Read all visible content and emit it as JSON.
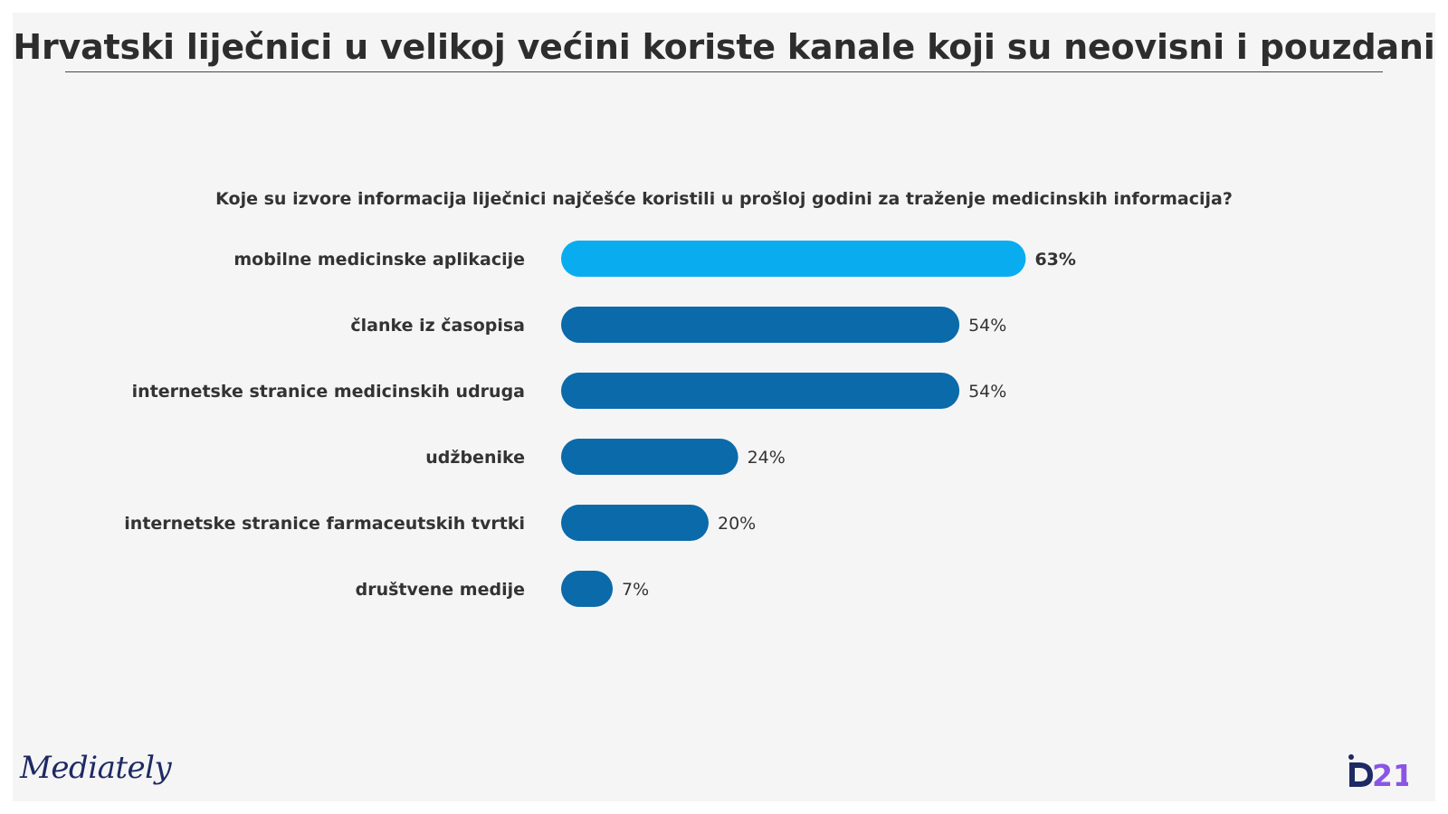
{
  "title": "Hrvatski liječnici u velikoj većini koriste kanale koji su neovisni i pouzdani",
  "logos": {
    "left": "Mediately",
    "right": "D21"
  },
  "colors": {
    "background": "#f5f5f5",
    "highlight_bar": "#09adef",
    "bar": "#0a6aaa",
    "text": "#333333",
    "logo_left": "#1e2a63",
    "logo_right": "#8a55e6"
  },
  "chart_data": {
    "type": "bar",
    "orientation": "horizontal",
    "title": "Koje su izvore informacija liječnici najčešće koristili u prošloj godini za traženje medicinskih informacija?",
    "categories": [
      "mobilne medicinske aplikacije",
      "članke iz časopisa",
      "internetske stranice medicinskih udruga",
      "udžbenike",
      "internetske stranice farmaceutskih tvrtki",
      "društvene medije"
    ],
    "values": [
      63,
      54,
      54,
      24,
      20,
      7
    ],
    "value_labels": [
      "63%",
      "54%",
      "54%",
      "24%",
      "20%",
      "7%"
    ],
    "unit": "%",
    "highlighted_index": 0,
    "xlim": [
      0,
      100
    ],
    "grid": false,
    "legend": "none"
  }
}
